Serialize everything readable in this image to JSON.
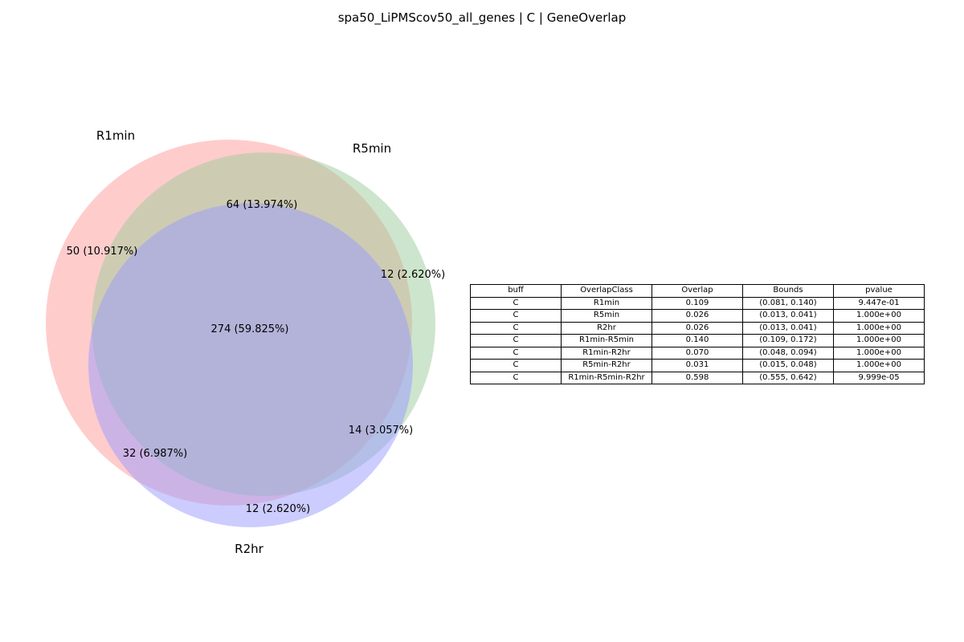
{
  "title": "spa50_LiPMScov50_all_genes | C | GeneOverlap",
  "sets": [
    "R1min",
    "R5min",
    "R2hr"
  ],
  "colors": {
    "R1min": "#ff9a9a",
    "R5min": "#9ccc99",
    "R2hr": "#9999ff"
  },
  "regions": {
    "r1_only": "50 (10.917%)",
    "r5_only": "12 (2.620%)",
    "r2_only": "12 (2.620%)",
    "r1_r5": "64 (13.974%)",
    "r1_r2": "32 (6.987%)",
    "r5_r2": "14 (3.057%)",
    "all": "274 (59.825%)"
  },
  "table": {
    "headers": [
      "buff",
      "OverlapClass",
      "Overlap",
      "Bounds",
      "pvalue"
    ],
    "rows": [
      [
        "C",
        "R1min",
        "0.109",
        "(0.081, 0.140)",
        "9.447e-01"
      ],
      [
        "C",
        "R5min",
        "0.026",
        "(0.013, 0.041)",
        "1.000e+00"
      ],
      [
        "C",
        "R2hr",
        "0.026",
        "(0.013, 0.041)",
        "1.000e+00"
      ],
      [
        "C",
        "R1min-R5min",
        "0.140",
        "(0.109, 0.172)",
        "1.000e+00"
      ],
      [
        "C",
        "R1min-R2hr",
        "0.070",
        "(0.048, 0.094)",
        "1.000e+00"
      ],
      [
        "C",
        "R5min-R2hr",
        "0.031",
        "(0.015, 0.048)",
        "1.000e+00"
      ],
      [
        "C",
        "R1min-R5min-R2hr",
        "0.598",
        "(0.555, 0.642)",
        "9.999e-05"
      ]
    ]
  }
}
